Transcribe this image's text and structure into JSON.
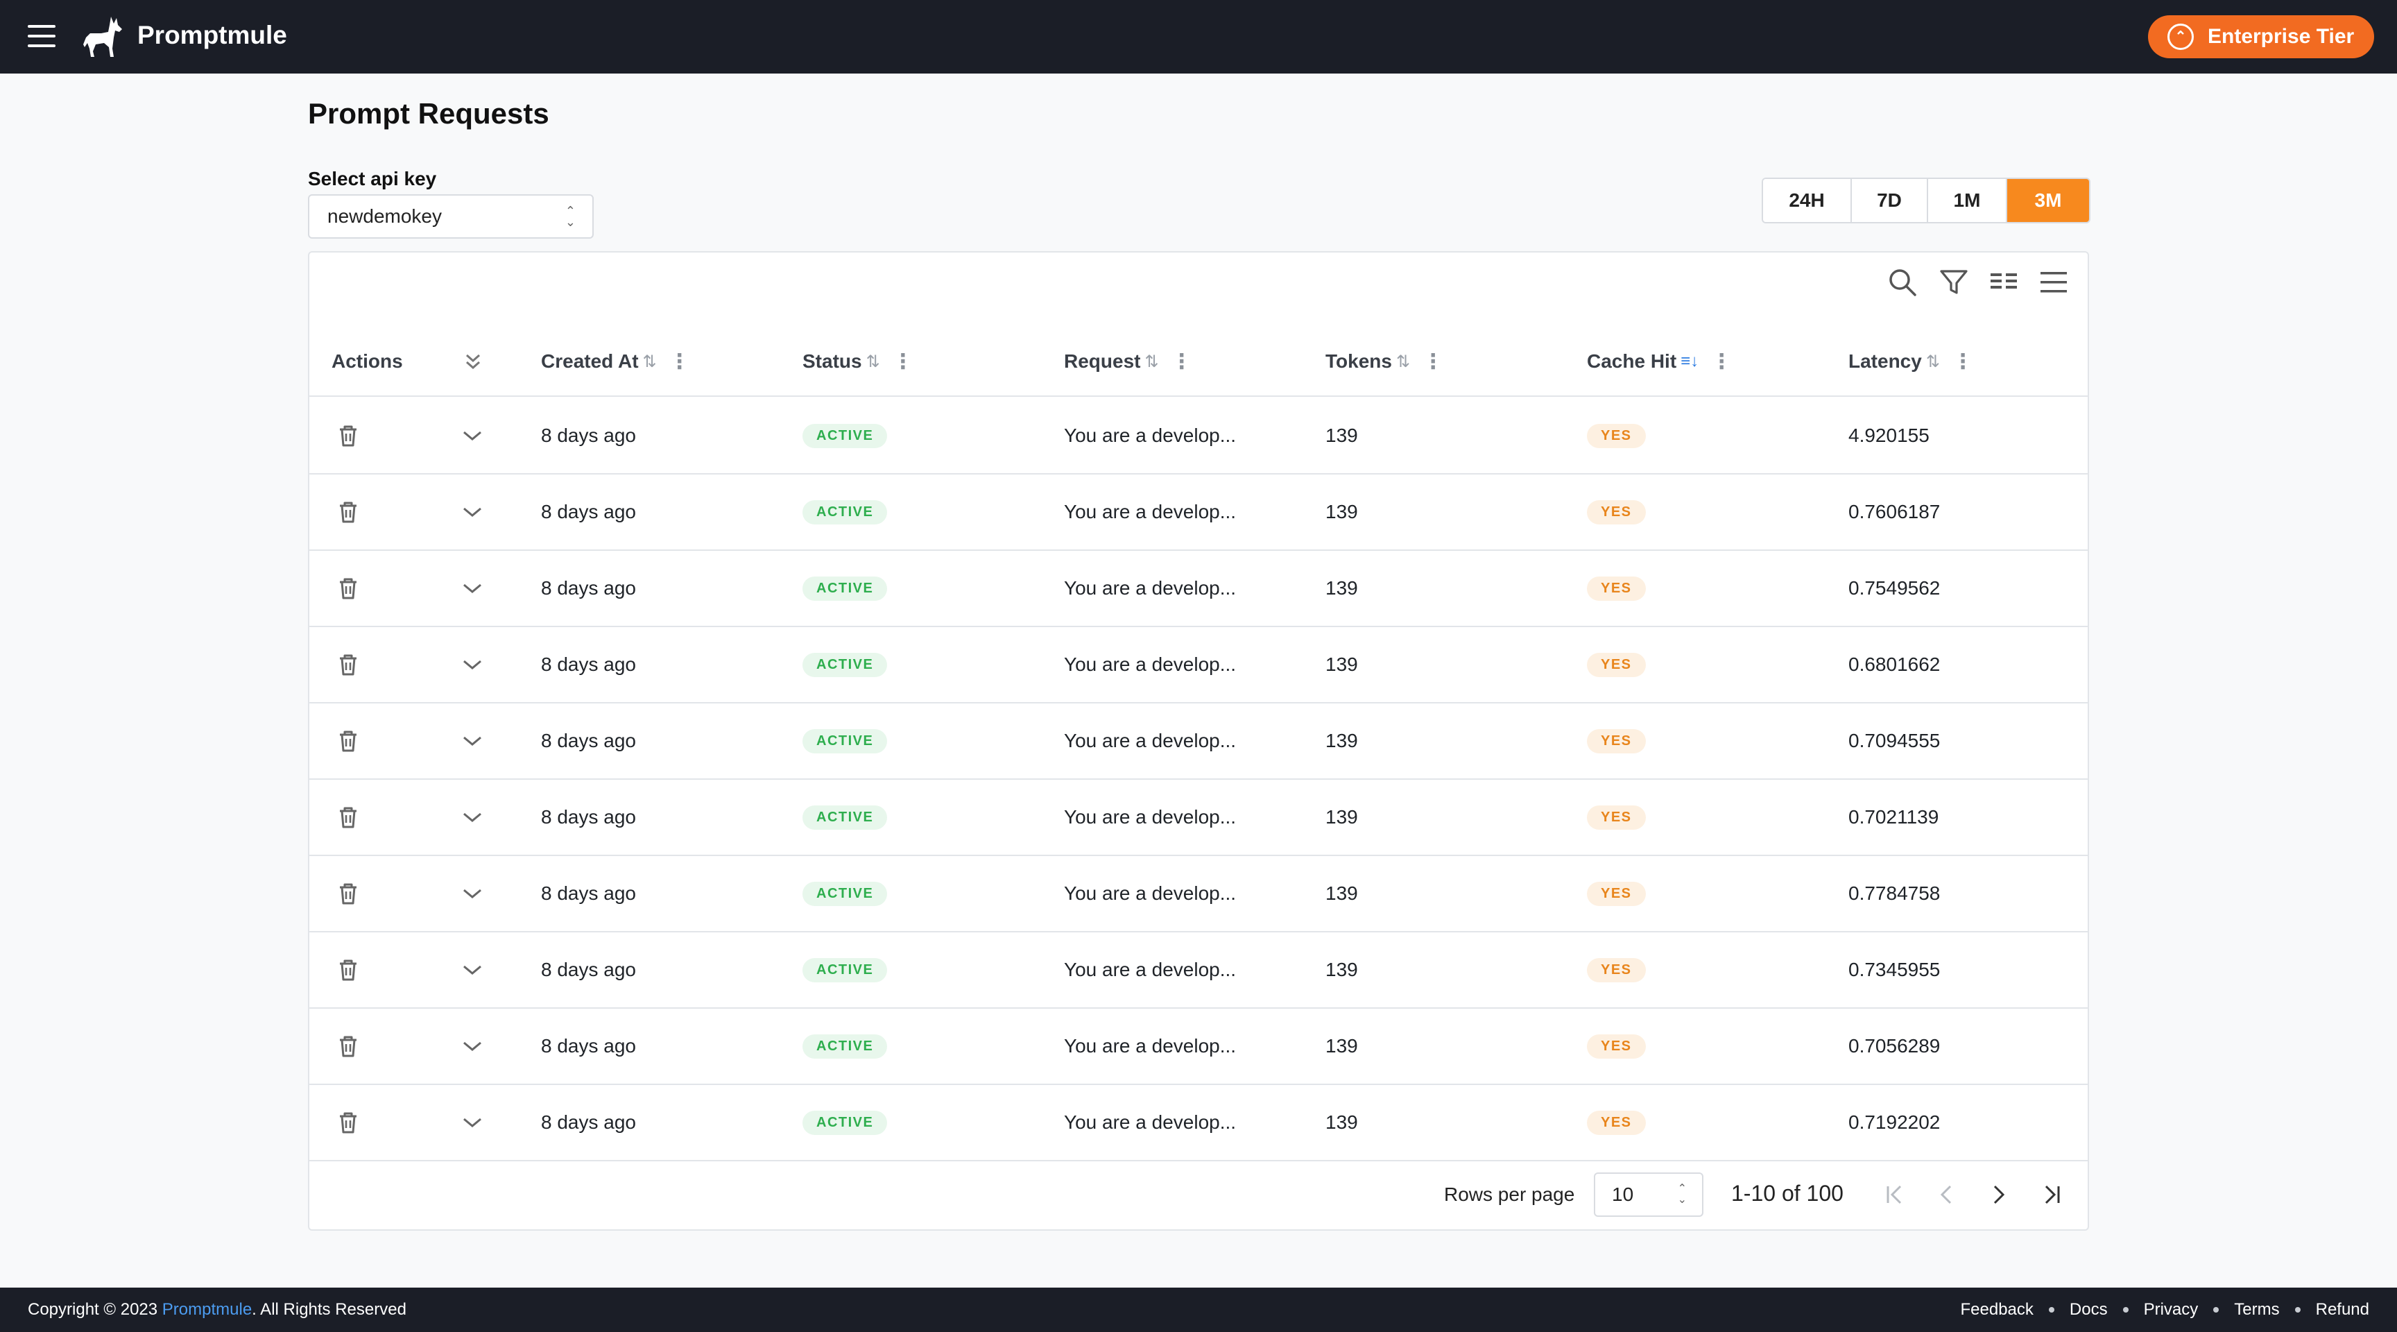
{
  "header": {
    "brand": "Promptmule",
    "tier_label": "Enterprise Tier"
  },
  "page": {
    "title": "Prompt Requests",
    "select_label": "Select api key",
    "api_key_value": "newdemokey"
  },
  "range": {
    "options": [
      "24H",
      "7D",
      "1M",
      "3M"
    ],
    "selected": "3M"
  },
  "table": {
    "columns": {
      "actions": "Actions",
      "created_at": "Created At",
      "status": "Status",
      "request": "Request",
      "tokens": "Tokens",
      "cache_hit": "Cache Hit",
      "latency": "Latency"
    },
    "rows": [
      {
        "created_at": "8 days ago",
        "status": "ACTIVE",
        "request": "You are a develop...",
        "tokens": "139",
        "cache_hit": "YES",
        "latency": "4.920155"
      },
      {
        "created_at": "8 days ago",
        "status": "ACTIVE",
        "request": "You are a develop...",
        "tokens": "139",
        "cache_hit": "YES",
        "latency": "0.7606187"
      },
      {
        "created_at": "8 days ago",
        "status": "ACTIVE",
        "request": "You are a develop...",
        "tokens": "139",
        "cache_hit": "YES",
        "latency": "0.7549562"
      },
      {
        "created_at": "8 days ago",
        "status": "ACTIVE",
        "request": "You are a develop...",
        "tokens": "139",
        "cache_hit": "YES",
        "latency": "0.6801662"
      },
      {
        "created_at": "8 days ago",
        "status": "ACTIVE",
        "request": "You are a develop...",
        "tokens": "139",
        "cache_hit": "YES",
        "latency": "0.7094555"
      },
      {
        "created_at": "8 days ago",
        "status": "ACTIVE",
        "request": "You are a develop...",
        "tokens": "139",
        "cache_hit": "YES",
        "latency": "0.7021139"
      },
      {
        "created_at": "8 days ago",
        "status": "ACTIVE",
        "request": "You are a develop...",
        "tokens": "139",
        "cache_hit": "YES",
        "latency": "0.7784758"
      },
      {
        "created_at": "8 days ago",
        "status": "ACTIVE",
        "request": "You are a develop...",
        "tokens": "139",
        "cache_hit": "YES",
        "latency": "0.7345955"
      },
      {
        "created_at": "8 days ago",
        "status": "ACTIVE",
        "request": "You are a develop...",
        "tokens": "139",
        "cache_hit": "YES",
        "latency": "0.7056289"
      },
      {
        "created_at": "8 days ago",
        "status": "ACTIVE",
        "request": "You are a develop...",
        "tokens": "139",
        "cache_hit": "YES",
        "latency": "0.7192202"
      }
    ],
    "toolbar_icons": [
      "search-icon",
      "filter-icon",
      "columns-icon",
      "density-icon"
    ]
  },
  "pagination": {
    "rows_per_page_label": "Rows per page",
    "rows_per_page_value": "10",
    "range_text": "1-10 of 100"
  },
  "footer": {
    "copyright_prefix": "Copyright © 2023 ",
    "copyright_link": "Promptmule",
    "copyright_suffix": ". All Rights Reserved",
    "links": [
      "Feedback",
      "Docs",
      "Privacy",
      "Terms",
      "Refund"
    ]
  },
  "colors": {
    "header_bg": "#1b1e27",
    "accent": "#f7891e",
    "tier_button": "#f26b21",
    "active_green": "#2eae4e",
    "yes_orange": "#e8851c"
  }
}
